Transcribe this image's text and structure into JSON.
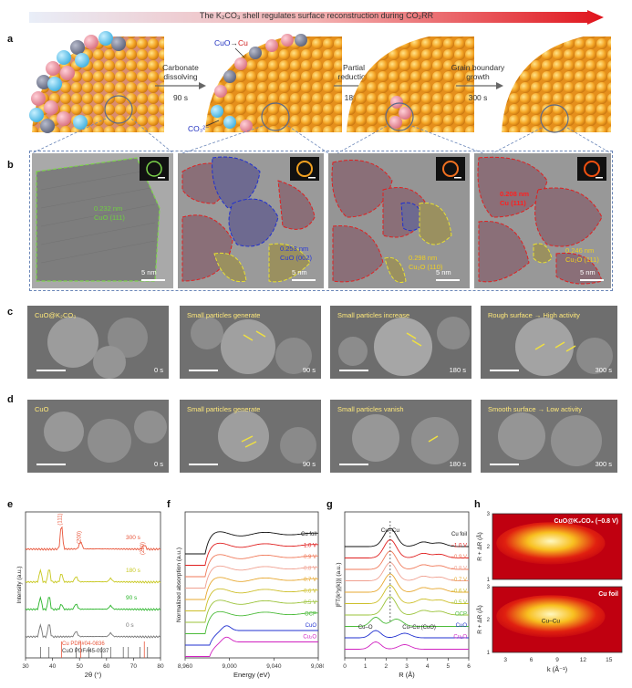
{
  "header": {
    "title": "The K₂CO₃ shell regulates surface reconstruction during CO₂RR"
  },
  "panel_labels": {
    "a": "a",
    "b": "b",
    "c": "c",
    "d": "d",
    "e": "e",
    "f": "f",
    "g": "g",
    "h": "h"
  },
  "panel_a": {
    "step1": {
      "line1": "Carbonate",
      "line2": "dissolving",
      "time": "90 s"
    },
    "step2": {
      "line1": "Partial",
      "line2": "reduction",
      "time": "180 s"
    },
    "step3": {
      "line1": "Grain boundary",
      "line2": "growth",
      "time": "300 s"
    },
    "cuo_label": "CuO",
    "arrow": "→",
    "cu_label": "Cu",
    "co3_label": "CO₃²⁻"
  },
  "panel_b": {
    "tem1": {
      "anno1": "0.232 nm",
      "anno2": "CuO (111)",
      "scale": "5 nm"
    },
    "tem2": {
      "anno1": "0.253 nm",
      "anno2": "CuO (002)",
      "scale": "5 nm"
    },
    "tem3": {
      "anno1": "0.298 nm",
      "anno2": "Cu₂O (110)",
      "scale": "5 nm"
    },
    "tem4": {
      "anno1": "0.208 nm",
      "anno2": "Cu (111)",
      "anno3": "0.246 nm",
      "anno4": "Cu₂O (111)",
      "scale": "5 nm"
    }
  },
  "panel_c": [
    {
      "label": "CuO@K₂CO₃",
      "time": "0 s"
    },
    {
      "label": "Small particles generate",
      "time": "90 s"
    },
    {
      "label": "Small particles increase",
      "time": "180 s"
    },
    {
      "label": "Rough surface → High activity",
      "time": "300 s"
    }
  ],
  "panel_d": [
    {
      "label": "CuO",
      "time": "0 s"
    },
    {
      "label": "Small particles generate",
      "time": "90 s"
    },
    {
      "label": "Small particles vanish",
      "time": "180 s"
    },
    {
      "label": "Smooth surface → Low activity",
      "time": "300 s"
    }
  ],
  "chart_data": [
    {
      "type": "line",
      "panel": "e",
      "xlabel": "2θ (°)",
      "ylabel": "Intensity (a.u.)",
      "xlim": [
        30,
        80
      ],
      "xticks": [
        "30",
        "40",
        "50",
        "60",
        "70",
        "80"
      ],
      "series": [
        {
          "name": "300 s",
          "color": "#e8553a"
        },
        {
          "name": "180 s",
          "color": "#c8c820"
        },
        {
          "name": "90 s",
          "color": "#2bb52b"
        },
        {
          "name": "0 s",
          "color": "#777777"
        }
      ],
      "peak_labels": [
        "(111)",
        "(200)",
        "(220)"
      ],
      "references": [
        {
          "name": "Cu PDF#04-0836",
          "color": "#e8553a"
        },
        {
          "name": "CuO PDF#45-0937",
          "color": "#333333"
        }
      ]
    },
    {
      "type": "line",
      "panel": "f",
      "xlabel": "Energy (eV)",
      "ylabel": "Normalized absorption (a.u.)",
      "xlim": [
        8960,
        9080
      ],
      "xticks": [
        "8,960",
        "9,000",
        "9,040",
        "9,080"
      ],
      "series": [
        {
          "name": "Cu foil",
          "color": "#111111"
        },
        {
          "name": "−1.0 V",
          "color": "#e02020"
        },
        {
          "name": "−0.9 V",
          "color": "#f07a5a"
        },
        {
          "name": "−0.8 V",
          "color": "#f0a090"
        },
        {
          "name": "−0.7 V",
          "color": "#e7a830"
        },
        {
          "name": "−0.6 V",
          "color": "#cdbf2a"
        },
        {
          "name": "−0.5 V",
          "color": "#9bc33a"
        },
        {
          "name": "OCP",
          "color": "#4cbb3a"
        },
        {
          "name": "CuO",
          "color": "#2030d0"
        },
        {
          "name": "Cu₂O",
          "color": "#d020c0"
        }
      ]
    },
    {
      "type": "line",
      "panel": "g",
      "xlabel": "R (Å)",
      "ylabel": "|FT(k³χ(k))| (a.u.)",
      "xlim": [
        0,
        6
      ],
      "xticks": [
        "0",
        "1",
        "2",
        "3",
        "4",
        "5",
        "6"
      ],
      "annotations": [
        "Cu–Cu",
        "Cu–O",
        "Cu–Cu (CuO)"
      ],
      "series": [
        {
          "name": "Cu foil",
          "color": "#111111"
        },
        {
          "name": "−1.0 V",
          "color": "#e02020"
        },
        {
          "name": "−0.9 V",
          "color": "#f07a5a"
        },
        {
          "name": "−0.8 V",
          "color": "#f0a090"
        },
        {
          "name": "−0.7 V",
          "color": "#e7a830"
        },
        {
          "name": "−0.6 V",
          "color": "#cdbf2a"
        },
        {
          "name": "−0.5 V",
          "color": "#9bc33a"
        },
        {
          "name": "OCP",
          "color": "#4cbb3a"
        },
        {
          "name": "CuO",
          "color": "#2030d0"
        },
        {
          "name": "Cu₂O",
          "color": "#d020c0"
        }
      ]
    },
    {
      "type": "heatmap",
      "panel": "h",
      "xlabel": "k (Å⁻¹)",
      "ylabel": "R + ΔR (Å)",
      "xticks": [
        "3",
        "6",
        "9",
        "12",
        "15"
      ],
      "yticks": [
        "1",
        "2",
        "3"
      ],
      "maps": [
        {
          "title": "CuO@K₂CO₃ (−0.8 V)"
        },
        {
          "title": "Cu foil",
          "annotation": "Cu–Cu"
        }
      ]
    }
  ]
}
